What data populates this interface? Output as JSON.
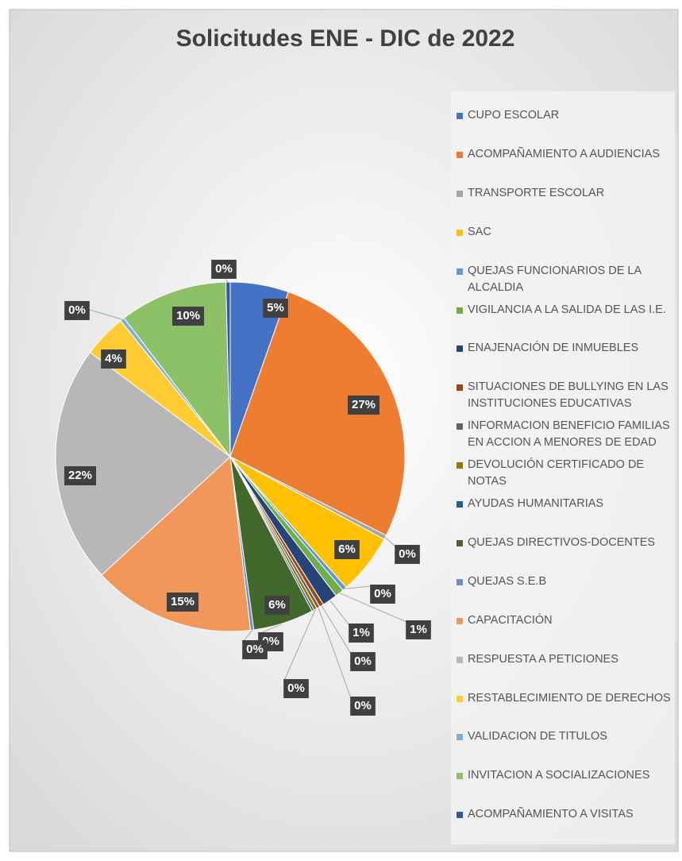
{
  "chart_data": {
    "type": "pie",
    "title": "Solicitudes ENE - DIC de 2022",
    "categories": [
      "CUPO ESCOLAR",
      "ACOMPAÑAMIENTO A AUDIENCIAS",
      "TRANSPORTE ESCOLAR",
      "SAC",
      "QUEJAS FUNCIONARIOS DE LA ALCALDIA",
      "VIGILANCIA A LA SALIDA DE LAS I.E.",
      "ENAJENACIÓN DE INMUEBLES",
      "SITUACIONES DE BULLYING EN LAS INSTITUCIONES EDUCATIVAS",
      "INFORMACION BENEFICIO FAMILIAS EN ACCION A MENORES DE EDAD",
      "DEVOLUCIÓN CERTIFICADO DE NOTAS",
      "AYUDAS HUMANITARIAS",
      "QUEJAS DIRECTIVOS-DOCENTES",
      "QUEJAS S.E.B",
      "CAPACITACIÓN",
      "RESPUESTA A PETICIONES",
      "RESTABLECIMIENTO DE DERECHOS",
      "VALIDACION DE TITULOS",
      "INVITACION A SOCIALIZACIONES",
      "ACOMPAÑAMIENTO A VISITAS"
    ],
    "values": [
      5.4,
      27,
      0.4,
      5.6,
      0.4,
      0.8,
      1.4,
      0.4,
      0.3,
      0.3,
      0.2,
      5.6,
      0.3,
      15,
      22,
      4,
      0.4,
      10,
      0.4
    ],
    "value_labels": [
      "5%",
      "27%",
      "0%",
      "6%",
      "0%",
      "1%",
      "1%",
      "0%",
      "0%",
      "0%",
      "0%",
      "6%",
      "0%",
      "15%",
      "22%",
      "4%",
      "0%",
      "10%",
      "0%"
    ],
    "colors": [
      "#4472c4",
      "#ed7d31",
      "#a5a5a5",
      "#ffc000",
      "#5b9bd5",
      "#70ad47",
      "#264478",
      "#9e480e",
      "#636363",
      "#997300",
      "#255e91",
      "#43682b",
      "#698ed0",
      "#f1975a",
      "#b7b7b7",
      "#ffcd33",
      "#7cafdd",
      "#8cc168",
      "#335aa1"
    ],
    "legend": "right"
  }
}
